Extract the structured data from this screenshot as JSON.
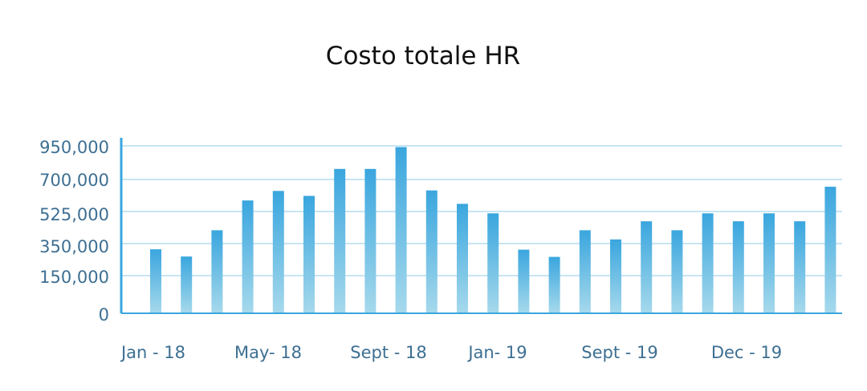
{
  "chart_data": {
    "type": "bar",
    "title": "Costo totale HR",
    "xlabel": "",
    "ylabel": "",
    "y_tick_labels": [
      "950,000",
      "700,000",
      "525,000",
      "350,000",
      "150,000",
      "0"
    ],
    "x_tick_labels": [
      "Jan - 18",
      "May- 18",
      "Sept - 18",
      "Jan- 19",
      "Sept - 19",
      "Dec - 19"
    ],
    "values": [
      363000,
      322000,
      471000,
      640000,
      694000,
      666000,
      819000,
      819000,
      943000,
      697000,
      621000,
      567000,
      361000,
      320000,
      471000,
      419000,
      522000,
      471000,
      567000,
      522000,
      567000,
      522000,
      718000
    ],
    "ylim": [
      0,
      950000
    ],
    "grid": true,
    "color_top": "#3aa6de",
    "color_bottom": "#a6d9ec",
    "axis_color": "#3aa6de",
    "grid_color": "#8fcbe6"
  }
}
